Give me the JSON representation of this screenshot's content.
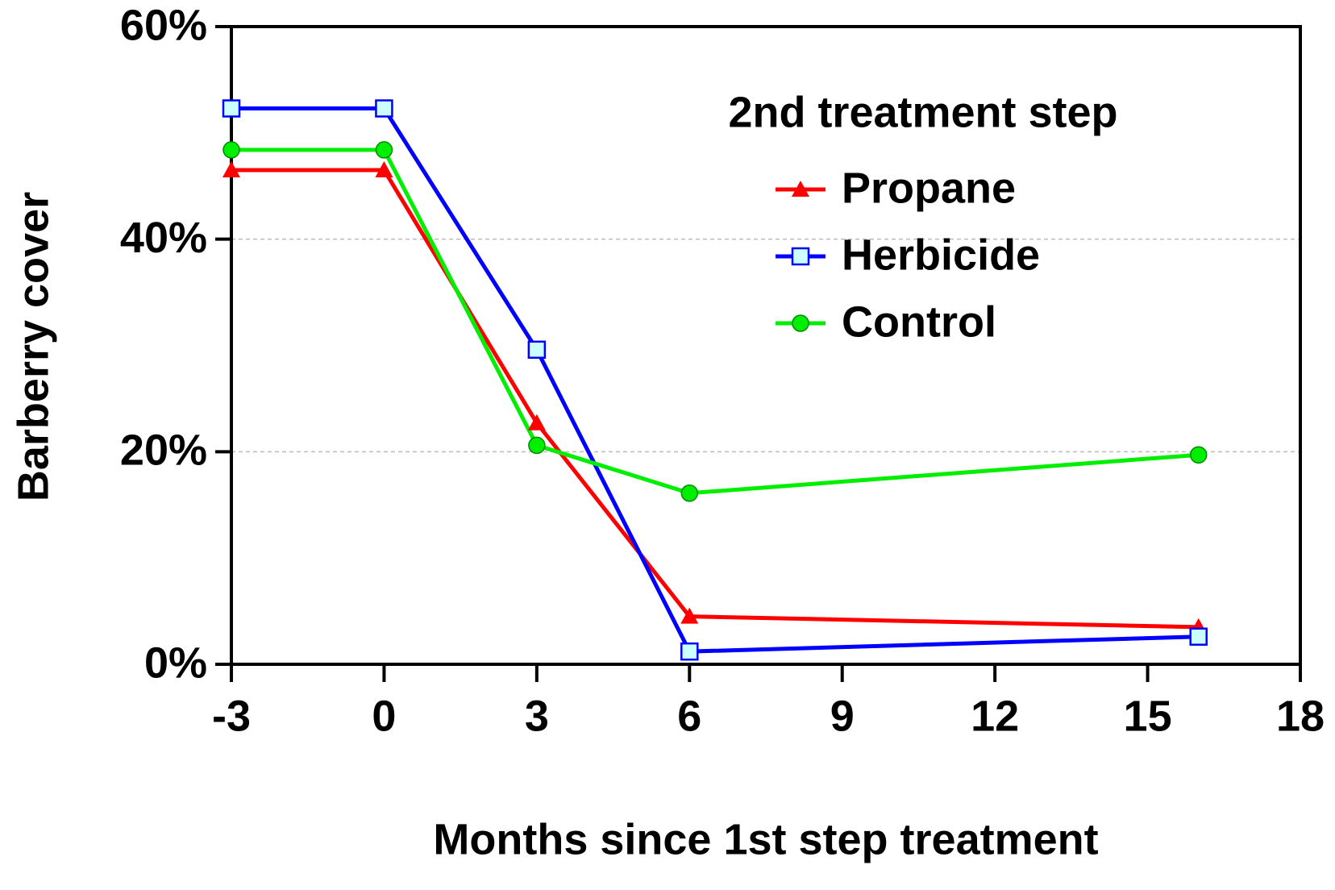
{
  "chart_data": {
    "type": "line",
    "x_label": "Months since 1st step treatment",
    "y_label": "Barberry cover",
    "legend_title": "2nd treatment step",
    "legend_position": "upper right",
    "x": [
      -3,
      0,
      3,
      6,
      16
    ],
    "series": [
      {
        "name": "Propane",
        "color": "#ff0000",
        "marker": "triangle",
        "values": [
          46.5,
          46.5,
          22.7,
          4.5,
          3.5
        ]
      },
      {
        "name": "Herbicide",
        "color": "#0000ff",
        "marker": "square",
        "values": [
          52.3,
          52.3,
          29.6,
          1.2,
          2.6
        ]
      },
      {
        "name": "Control",
        "color": "#00ee00",
        "marker": "circle",
        "values": [
          48.4,
          48.4,
          20.6,
          16.1,
          19.7
        ]
      }
    ],
    "xlim": [
      -3,
      18
    ],
    "xticks": [
      -3,
      0,
      3,
      6,
      9,
      12,
      15,
      18
    ],
    "ylim": [
      0,
      60
    ],
    "yticks": [
      {
        "value": 0,
        "label": "0%"
      },
      {
        "value": 20,
        "label": "20%"
      },
      {
        "value": 40,
        "label": "40%"
      },
      {
        "value": 60,
        "label": "60%"
      }
    ],
    "grid": true
  }
}
